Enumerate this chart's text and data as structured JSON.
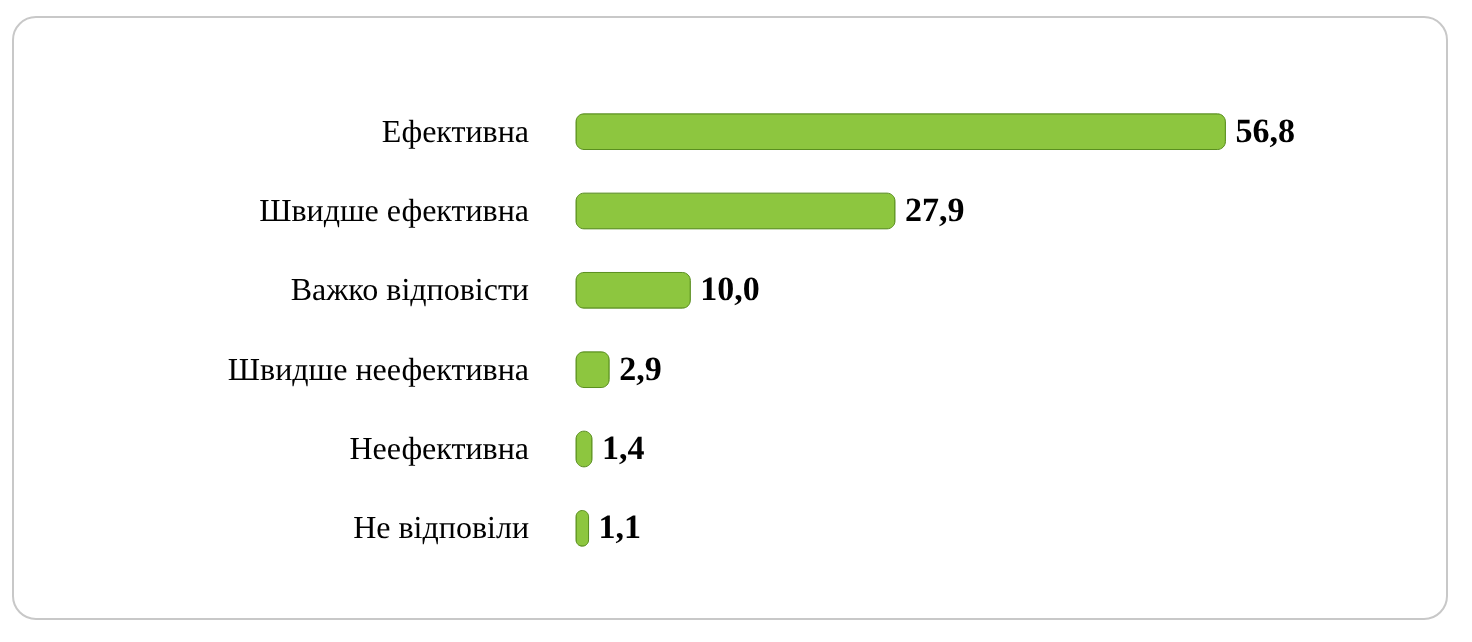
{
  "chart_data": {
    "type": "bar",
    "orientation": "horizontal",
    "categories": [
      "Ефективна",
      "Швидше ефективна",
      "Важко відповісти",
      "Швидше неефективна",
      "Неефективна",
      "Не відповіли"
    ],
    "values": [
      56.8,
      27.9,
      10.0,
      2.9,
      1.4,
      1.1
    ],
    "value_labels": [
      "56,8",
      "27,9",
      "10,0",
      "2,9",
      "1,4",
      "1,1"
    ],
    "color": "#8dc63f",
    "grid": false
  }
}
